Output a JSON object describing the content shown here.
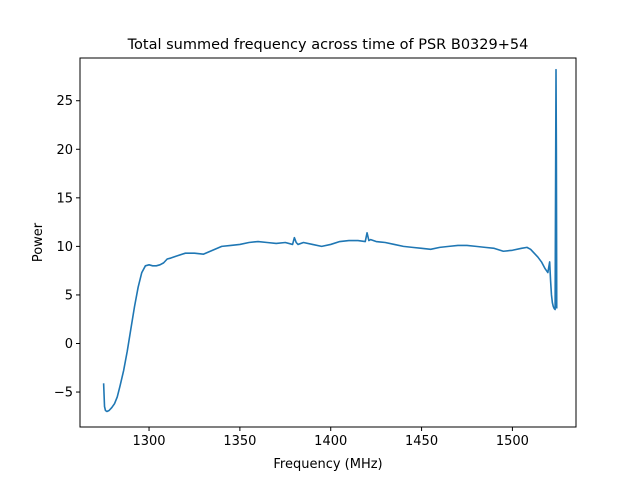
{
  "chart_data": {
    "type": "line",
    "title": "Total summed frequency across time of PSR B0329+54",
    "xlabel": "Frequency (MHz)",
    "ylabel": "Power",
    "xlim": [
      1262,
      1535
    ],
    "ylim": [
      -8.6,
      29.4
    ],
    "xticks": [
      1300,
      1350,
      1400,
      1450,
      1500
    ],
    "yticks": [
      -5,
      0,
      5,
      10,
      15,
      20,
      25
    ],
    "grid": false,
    "line_color": "#1f77b4",
    "series": [
      {
        "x": [
          1275.0,
          1275.5,
          1276.0,
          1276.8,
          1278.0,
          1279.5,
          1281.0,
          1282.5,
          1284.0,
          1286.0,
          1288.0,
          1290.0,
          1292.0,
          1294.0,
          1296.0,
          1298.0,
          1300.0,
          1302.0,
          1304.0,
          1306.0,
          1308.0,
          1310.0,
          1312.0,
          1315.0,
          1320.0,
          1325.0,
          1330.0,
          1335.0,
          1340.0,
          1345.0,
          1350.0,
          1355.0,
          1360.0,
          1365.0,
          1370.0,
          1375.0,
          1379.0,
          1380.0,
          1381.0,
          1382.0,
          1385.0,
          1390.0,
          1395.0,
          1400.0,
          1405.0,
          1410.0,
          1415.0,
          1419.0,
          1420.0,
          1421.0,
          1422.0,
          1425.0,
          1430.0,
          1435.0,
          1440.0,
          1445.0,
          1450.0,
          1455.0,
          1460.0,
          1465.0,
          1470.0,
          1475.0,
          1480.0,
          1485.0,
          1490.0,
          1495.0,
          1500.0,
          1505.0,
          1508.0,
          1510.0,
          1512.0,
          1514.0,
          1516.0,
          1518.0,
          1519.5,
          1520.5,
          1521.0,
          1521.5,
          1522.0,
          1522.5,
          1523.0,
          1523.5,
          1524.0,
          1524.2,
          1524.4
        ],
        "y": [
          -4.1,
          -6.5,
          -6.9,
          -7.0,
          -6.9,
          -6.6,
          -6.2,
          -5.5,
          -4.4,
          -2.8,
          -0.8,
          1.5,
          3.8,
          5.8,
          7.3,
          8.0,
          8.1,
          8.0,
          8.0,
          8.1,
          8.3,
          8.7,
          8.8,
          9.0,
          9.3,
          9.3,
          9.2,
          9.6,
          10.0,
          10.1,
          10.2,
          10.4,
          10.5,
          10.4,
          10.3,
          10.4,
          10.2,
          10.9,
          10.4,
          10.2,
          10.4,
          10.2,
          10.0,
          10.2,
          10.5,
          10.6,
          10.6,
          10.5,
          11.4,
          10.6,
          10.7,
          10.5,
          10.4,
          10.2,
          10.0,
          9.9,
          9.8,
          9.7,
          9.9,
          10.0,
          10.1,
          10.1,
          10.0,
          9.9,
          9.8,
          9.5,
          9.6,
          9.8,
          9.9,
          9.7,
          9.3,
          8.9,
          8.4,
          7.7,
          7.3,
          8.4,
          6.5,
          5.0,
          4.2,
          3.8,
          3.6,
          3.5,
          28.2,
          20.0,
          3.6
        ]
      }
    ]
  }
}
